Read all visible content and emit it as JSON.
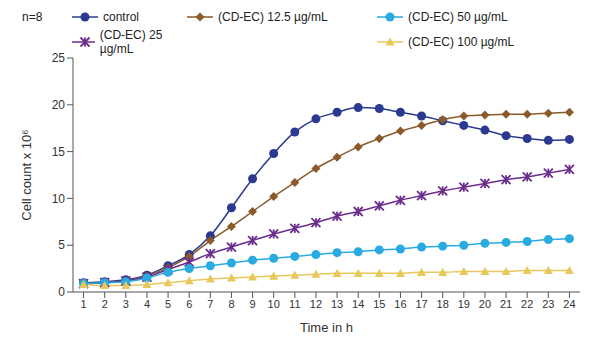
{
  "chart_data": {
    "type": "line",
    "x_label": "Time in h",
    "y_label": "Cell count x 10⁶",
    "annotation": "n=8",
    "x": [
      1,
      2,
      3,
      4,
      5,
      6,
      7,
      8,
      9,
      10,
      11,
      12,
      13,
      14,
      15,
      16,
      17,
      18,
      19,
      20,
      21,
      22,
      23,
      24
    ],
    "xlim": [
      0.5,
      24.5
    ],
    "xticks": [
      1,
      2,
      3,
      4,
      5,
      6,
      7,
      8,
      9,
      10,
      11,
      12,
      13,
      14,
      15,
      16,
      17,
      18,
      19,
      20,
      21,
      22,
      23,
      24
    ],
    "ylim": [
      0,
      25
    ],
    "yticks": [
      0,
      5,
      10,
      15,
      20,
      25
    ],
    "grid": false,
    "series": [
      {
        "name": "control",
        "color": "#2b3990",
        "marker": "circle",
        "values": [
          1,
          1.1,
          1.3,
          1.8,
          2.8,
          4,
          6,
          9,
          12.1,
          14.8,
          17.1,
          18.5,
          19.2,
          19.7,
          19.6,
          19.2,
          18.8,
          18.3,
          17.8,
          17.3,
          16.7,
          16.4,
          16.2,
          16.3
        ]
      },
      {
        "name": "(CD-EC) 12.5 µg/mL",
        "color": "#8b5a2b",
        "marker": "diamond",
        "values": [
          0.9,
          1,
          1.2,
          1.7,
          2.6,
          3.8,
          5.5,
          7,
          8.6,
          10.2,
          11.7,
          13.2,
          14.4,
          15.5,
          16.4,
          17.2,
          17.8,
          18.4,
          18.8,
          18.9,
          19,
          19,
          19.1,
          19.2
        ]
      },
      {
        "name": "(CD-EC) 25 µg/mL",
        "color": "#6b2d8b",
        "marker": "x",
        "values": [
          0.9,
          1,
          1.2,
          1.6,
          2.4,
          3.2,
          4.1,
          4.8,
          5.5,
          6.2,
          6.8,
          7.4,
          8.1,
          8.6,
          9.2,
          9.8,
          10.3,
          10.8,
          11.2,
          11.6,
          12,
          12.3,
          12.7,
          13.1
        ]
      },
      {
        "name": "(CD-EC) 50 µg/mL",
        "color": "#29abe2",
        "marker": "circle",
        "values": [
          0.9,
          1,
          1.1,
          1.5,
          2.1,
          2.5,
          2.8,
          3.1,
          3.4,
          3.6,
          3.8,
          4,
          4.2,
          4.3,
          4.5,
          4.6,
          4.8,
          4.9,
          5,
          5.2,
          5.3,
          5.4,
          5.6,
          5.7
        ]
      },
      {
        "name": "(CD-EC) 100 µg/mL",
        "color": "#e8c85a",
        "marker": "triangle",
        "values": [
          0.8,
          0.7,
          0.7,
          0.8,
          1,
          1.2,
          1.4,
          1.5,
          1.6,
          1.7,
          1.8,
          1.9,
          2,
          2,
          2,
          2,
          2.1,
          2.1,
          2.2,
          2.2,
          2.2,
          2.3,
          2.3,
          2.3
        ]
      }
    ]
  }
}
